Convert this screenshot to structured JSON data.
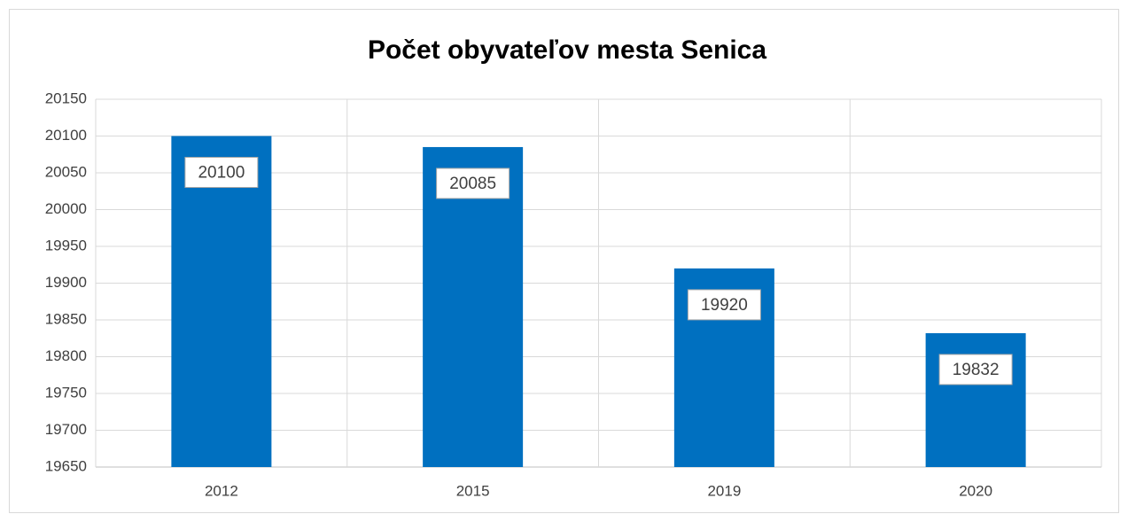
{
  "chart_data": {
    "type": "bar",
    "title": "Počet obyvateľov mesta Senica",
    "categories": [
      "2012",
      "2015",
      "2019",
      "2020"
    ],
    "values": [
      20100,
      20085,
      19920,
      19832
    ],
    "color": "#0070c0",
    "ylim": [
      19650,
      20150
    ],
    "yticks": [
      19650,
      19700,
      19750,
      19800,
      19850,
      19900,
      19950,
      20000,
      20050,
      20100,
      20150
    ],
    "grid": true
  }
}
